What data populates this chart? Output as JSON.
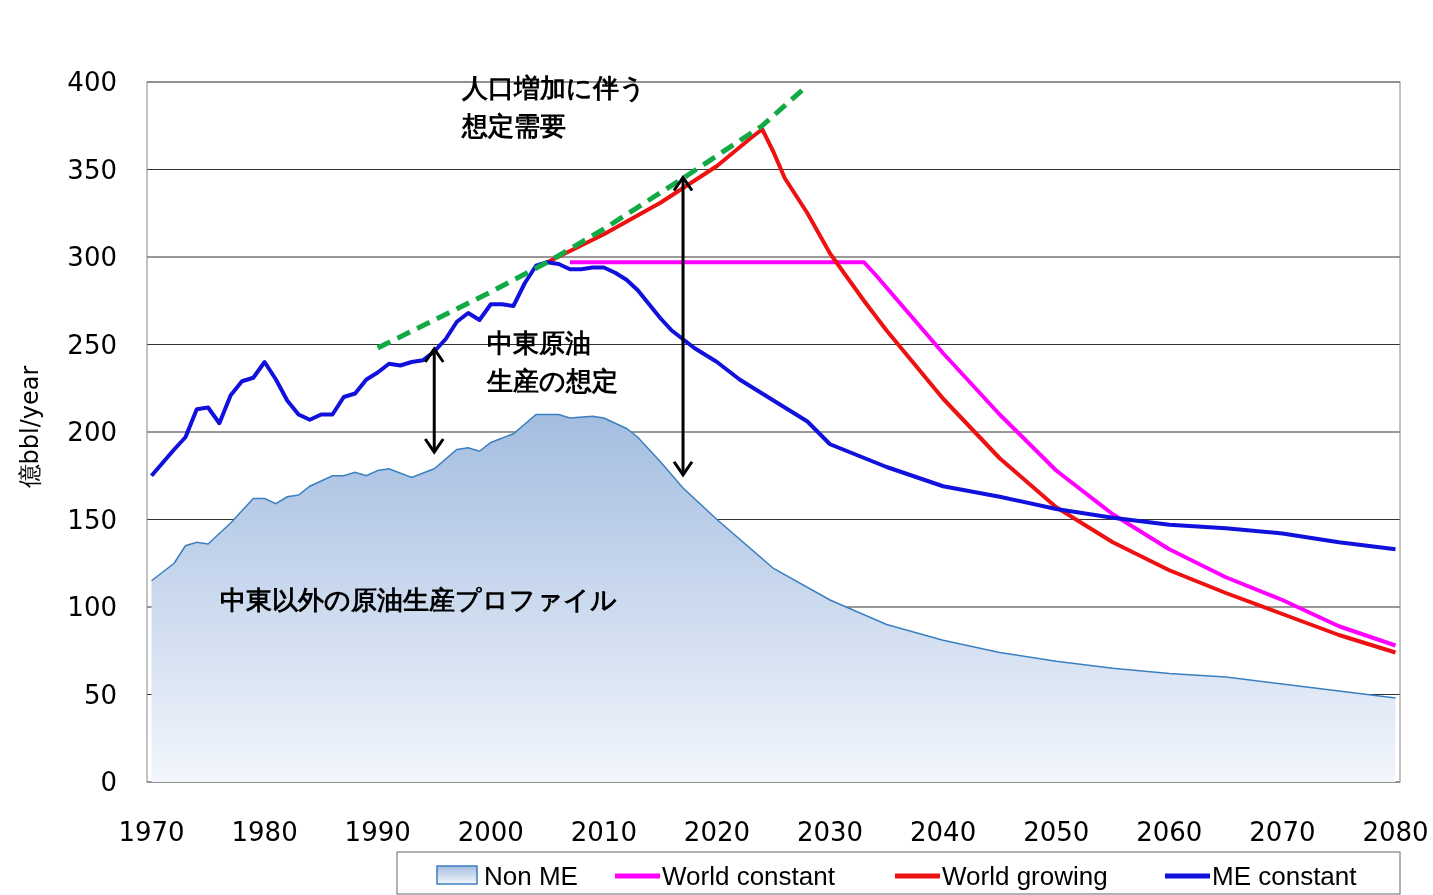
{
  "chart_data": {
    "type": "line",
    "ylabel": "億bbl/year",
    "xlim": [
      1969.6,
      2080.4
    ],
    "xticks": [
      1970,
      1980,
      1990,
      2000,
      2010,
      2020,
      2030,
      2040,
      2050,
      2060,
      2070,
      2080
    ],
    "ylim": [
      0,
      400
    ],
    "yticks": [
      0,
      50,
      100,
      150,
      200,
      250,
      300,
      350,
      400
    ],
    "grid": "y",
    "legend": "bottom",
    "line_style": "solid",
    "series": [
      {
        "name": "Non ME",
        "type": "area",
        "color": "#a4bde0",
        "x": [
          1970,
          1972,
          1973,
          1974,
          1975,
          1977,
          1979,
          1980,
          1981,
          1982,
          1983,
          1984,
          1986,
          1987,
          1988,
          1989,
          1990,
          1991,
          1993,
          1995,
          1997,
          1998,
          1999,
          2000,
          2002,
          2004,
          2006,
          2007,
          2009,
          2010,
          2012,
          2013,
          2015,
          2017,
          2020,
          2025,
          2030,
          2035,
          2040,
          2045,
          2050,
          2055,
          2060,
          2065,
          2070,
          2075,
          2080
        ],
        "values": [
          115,
          125,
          135,
          137,
          136,
          148,
          162,
          162,
          159,
          163,
          164,
          169,
          175,
          175,
          177,
          175,
          178,
          179,
          174,
          179,
          190,
          191,
          189,
          194,
          199,
          210,
          210,
          208,
          209,
          208,
          202,
          197,
          183,
          168,
          150,
          122,
          104,
          90,
          81,
          74,
          69,
          65,
          62,
          60,
          56,
          52,
          48
        ]
      },
      {
        "name": "World constant",
        "color": "#ff00ff",
        "x": [
          2007,
          2033,
          2034,
          2036,
          2040,
          2045,
          2050,
          2055,
          2060,
          2065,
          2070,
          2075,
          2080
        ],
        "values": [
          297,
          297,
          290,
          275,
          245,
          210,
          178,
          153,
          133,
          117,
          104,
          89,
          78
        ]
      },
      {
        "name": "World growing",
        "color": "#ee1111",
        "x": [
          2005,
          2010,
          2015,
          2020,
          2023,
          2024,
          2025,
          2026,
          2028,
          2030,
          2033,
          2035,
          2040,
          2045,
          2050,
          2055,
          2060,
          2065,
          2070,
          2075,
          2080
        ],
        "values": [
          297,
          313,
          331,
          352,
          368,
          373,
          360,
          345,
          325,
          302,
          275,
          258,
          219,
          185,
          157,
          137,
          121,
          108,
          96,
          84,
          74
        ]
      },
      {
        "name": "ME constant",
        "color": "#1111dd",
        "x": [
          1970,
          1972,
          1973,
          1974,
          1975,
          1976,
          1977,
          1978,
          1979,
          1980,
          1981,
          1982,
          1983,
          1984,
          1985,
          1986,
          1987,
          1988,
          1989,
          1990,
          1991,
          1992,
          1993,
          1994,
          1995,
          1996,
          1997,
          1998,
          1999,
          2000,
          2001,
          2002,
          2003,
          2004,
          2005,
          2006,
          2007,
          2008,
          2009,
          2010,
          2011,
          2012,
          2013,
          2014,
          2015,
          2016,
          2018,
          2020,
          2022,
          2025,
          2028,
          2030,
          2035,
          2040,
          2045,
          2050,
          2055,
          2060,
          2065,
          2070,
          2075,
          2080
        ],
        "values": [
          175,
          190,
          197,
          213,
          214,
          205,
          221,
          229,
          231,
          240,
          230,
          218,
          210,
          207,
          210,
          210,
          220,
          222,
          230,
          234,
          239,
          238,
          240,
          241,
          246,
          253,
          263,
          268,
          264,
          273,
          273,
          272,
          285,
          295,
          297,
          296,
          293,
          293,
          294,
          294,
          291,
          287,
          281,
          273,
          265,
          258,
          248,
          240,
          230,
          218,
          206,
          193,
          180,
          169,
          163,
          156,
          151,
          147,
          145,
          142,
          137,
          133
        ]
      },
      {
        "type": "line",
        "color": "#11aa44",
        "line_style": "dashed",
        "x": [
          1990,
          2000,
          2005,
          2010,
          2017,
          2024,
          2028
        ],
        "values": [
          248,
          280,
          297,
          316,
          345,
          375,
          398
        ]
      }
    ],
    "annotations": [
      "人口増加に伴う想定需要",
      "中東原油生産の想定",
      "中東以外の原油生産プロファイル"
    ]
  }
}
